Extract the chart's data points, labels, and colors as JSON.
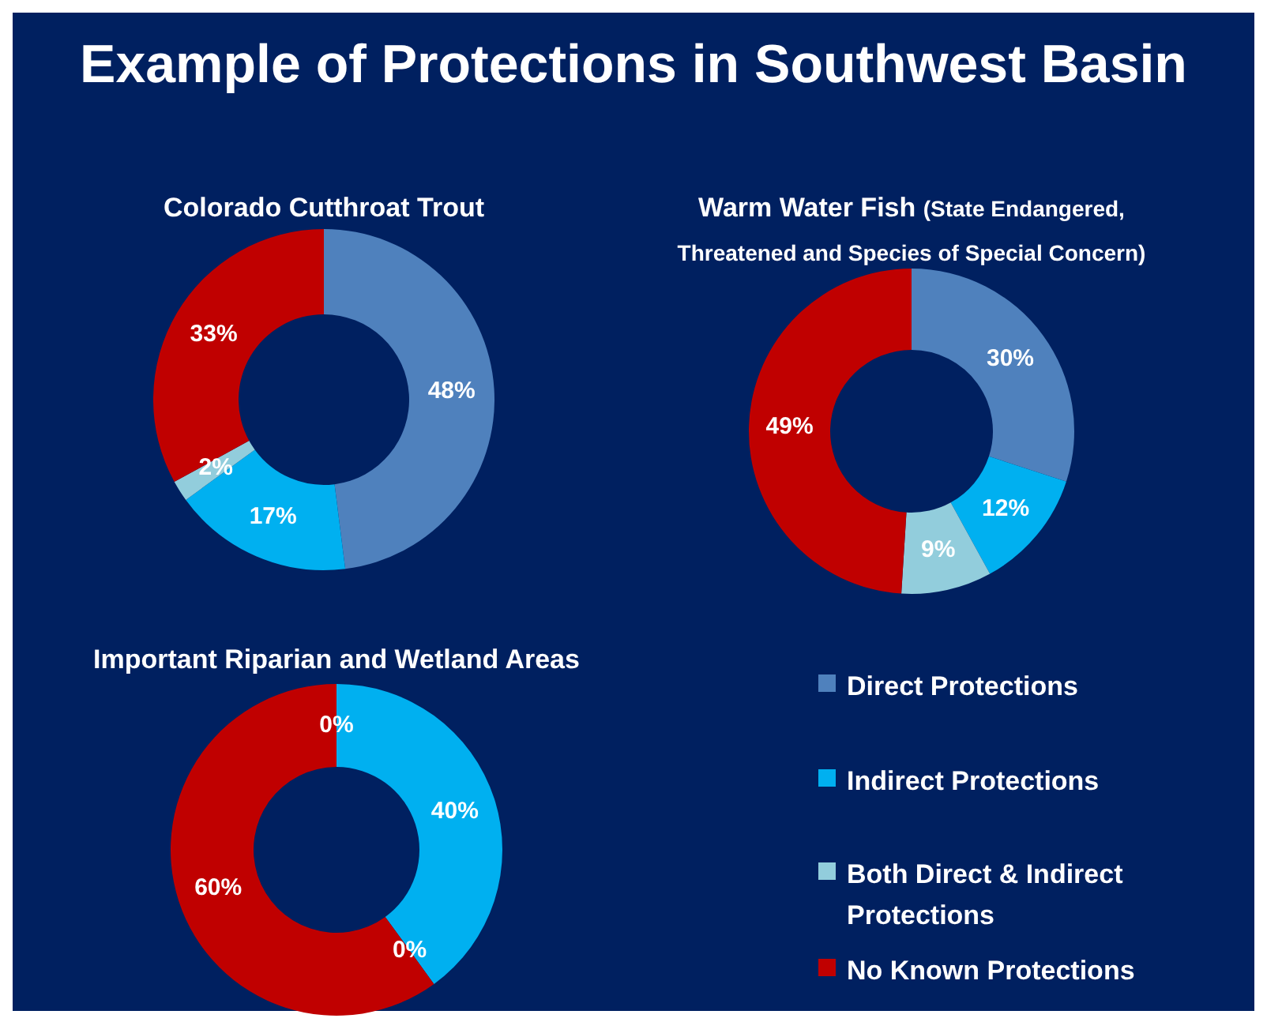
{
  "chart_data": [
    {
      "type": "other",
      "title": "Example of Protections in Southwest Basin"
    },
    {
      "type": "donut",
      "title": "Colorado Cutthroat Trout",
      "categories": [
        null,
        null,
        null,
        null
      ],
      "values": [
        48,
        17,
        2,
        33
      ],
      "value_labels": [
        "48%",
        "17%",
        "2%",
        "33%"
      ],
      "colors": [
        "#4f81bd",
        "#00b0f0",
        "#92cddc",
        "#c00000"
      ]
    },
    {
      "type": "donut",
      "title": "Warm Water Fish",
      "subtitle": "(State Endangered, Threatened and Species of Special Concern)",
      "categories": [
        null,
        null,
        null,
        null
      ],
      "values": [
        30,
        12,
        9,
        49
      ],
      "value_labels": [
        "30%",
        "12%",
        "9%",
        "49%"
      ],
      "colors": [
        "#4f81bd",
        "#00b0f0",
        "#92cddc",
        "#c00000"
      ]
    },
    {
      "type": "donut",
      "title": "Important Riparian and Wetland Areas",
      "categories": [
        "Direct Protections",
        "Indirect Protections",
        "Both Direct & Indirect Protections",
        "No Known Protections"
      ],
      "values": [
        0,
        40,
        0,
        60
      ],
      "value_labels": [
        "0%",
        "40%",
        "0%",
        "60%"
      ],
      "colors": [
        "#4f81bd",
        "#00b0f0",
        "#92cddc",
        "#c00000"
      ],
      "legend": "right"
    }
  ]
}
